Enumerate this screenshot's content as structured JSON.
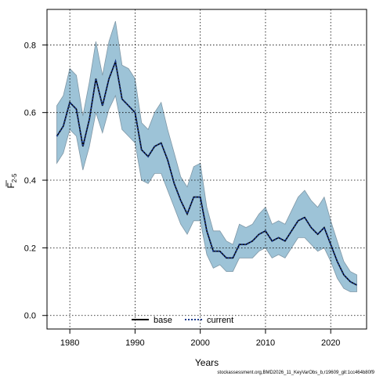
{
  "chart_data": {
    "type": "line",
    "xlabel": "Years",
    "ylabel_main": "F",
    "ylabel_sub": "2-5",
    "xlim": [
      1976.5,
      2025.5
    ],
    "ylim": [
      -0.04,
      0.905
    ],
    "xticks": [
      1980,
      1990,
      2000,
      2010,
      2020
    ],
    "yticks": [
      0.0,
      0.2,
      0.4,
      0.6,
      0.8
    ],
    "ytick_labels": [
      "0.0",
      "0.2",
      "0.4",
      "0.6",
      "0.8"
    ],
    "grid": true,
    "legend_position": "bottom-center",
    "band_color": "#9dc3d7",
    "x": [
      1978,
      1979,
      1980,
      1981,
      1982,
      1983,
      1984,
      1985,
      1986,
      1987,
      1988,
      1989,
      1990,
      1991,
      1992,
      1993,
      1994,
      1995,
      1996,
      1997,
      1998,
      1999,
      2000,
      2001,
      2002,
      2003,
      2004,
      2005,
      2006,
      2007,
      2008,
      2009,
      2010,
      2011,
      2012,
      2013,
      2014,
      2015,
      2016,
      2017,
      2018,
      2019,
      2020,
      2021,
      2022,
      2023,
      2024
    ],
    "series": [
      {
        "name": "base",
        "style": "solid",
        "color": "#000000",
        "values": [
          0.53,
          0.56,
          0.63,
          0.61,
          0.5,
          0.58,
          0.7,
          0.62,
          0.7,
          0.75,
          0.64,
          0.62,
          0.6,
          0.49,
          0.47,
          0.5,
          0.51,
          0.46,
          0.39,
          0.34,
          0.3,
          0.35,
          0.35,
          0.25,
          0.19,
          0.19,
          0.17,
          0.17,
          0.21,
          0.21,
          0.22,
          0.24,
          0.25,
          0.22,
          0.23,
          0.22,
          0.25,
          0.28,
          0.29,
          0.26,
          0.24,
          0.26,
          0.21,
          0.16,
          0.12,
          0.1,
          0.09
        ]
      },
      {
        "name": "current",
        "style": "dotted",
        "color": "#1a3a8c",
        "values": [
          0.53,
          0.56,
          0.63,
          0.61,
          0.5,
          0.58,
          0.7,
          0.62,
          0.7,
          0.75,
          0.64,
          0.62,
          0.6,
          0.49,
          0.47,
          0.5,
          0.51,
          0.46,
          0.39,
          0.34,
          0.3,
          0.35,
          0.35,
          0.25,
          0.19,
          0.19,
          0.17,
          0.17,
          0.21,
          0.21,
          0.22,
          0.24,
          0.25,
          0.22,
          0.23,
          0.22,
          0.25,
          0.28,
          0.29,
          0.26,
          0.24,
          0.26,
          0.21,
          0.16,
          0.12,
          0.1,
          0.09
        ]
      }
    ],
    "band": {
      "upper": [
        0.62,
        0.65,
        0.73,
        0.71,
        0.59,
        0.69,
        0.81,
        0.71,
        0.81,
        0.87,
        0.74,
        0.73,
        0.7,
        0.57,
        0.55,
        0.6,
        0.63,
        0.55,
        0.48,
        0.41,
        0.38,
        0.44,
        0.45,
        0.32,
        0.25,
        0.25,
        0.22,
        0.21,
        0.27,
        0.26,
        0.27,
        0.3,
        0.32,
        0.27,
        0.28,
        0.27,
        0.31,
        0.35,
        0.37,
        0.34,
        0.32,
        0.35,
        0.28,
        0.22,
        0.16,
        0.13,
        0.12
      ],
      "lower": [
        0.45,
        0.48,
        0.55,
        0.53,
        0.43,
        0.5,
        0.6,
        0.54,
        0.61,
        0.65,
        0.55,
        0.53,
        0.51,
        0.4,
        0.39,
        0.42,
        0.42,
        0.37,
        0.32,
        0.27,
        0.24,
        0.28,
        0.28,
        0.18,
        0.14,
        0.15,
        0.13,
        0.13,
        0.17,
        0.17,
        0.17,
        0.19,
        0.2,
        0.17,
        0.18,
        0.17,
        0.2,
        0.23,
        0.23,
        0.21,
        0.19,
        0.2,
        0.16,
        0.11,
        0.08,
        0.07,
        0.07
      ]
    }
  },
  "footer_text": "stockassessment.org,BMD2026_11_KeyVarObs_b,r19609_git:1cc464b80f9"
}
